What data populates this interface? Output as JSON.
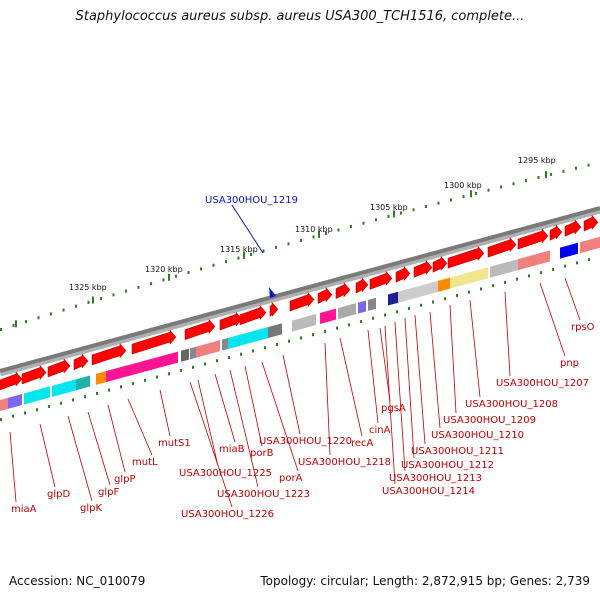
{
  "header": {
    "title": "Staphylococcus aureus subsp. aureus USA300_TCH1516, complete..."
  },
  "footer": {
    "accession": "Accession: NC_010079",
    "summary": "Topology: circular; Length: 2,872,915 bp; Genes: 2,739"
  },
  "colors": {
    "gene_red": "#ff0000",
    "label_red": "#c00000",
    "highlight_blue": "#0a14c8",
    "backbone_gray": "#808080",
    "tick_green": "#2e7d1e"
  },
  "ruler": {
    "ticks": [
      "1295 kbp",
      "1300 kbp",
      "1305 kbp",
      "1310 kbp",
      "1315 kbp",
      "1320 kbp",
      "1325 kbp"
    ]
  },
  "highlight": {
    "label": "USA300HOU_1219"
  },
  "genes": [
    "rpsO",
    "pnp",
    "USA300HOU_1207",
    "USA300HOU_1208",
    "USA300HOU_1209",
    "USA300HOU_1210",
    "USA300HOU_1211",
    "USA300HOU_1212",
    "USA300HOU_1213",
    "USA300HOU_1214",
    "pgsA",
    "cinA",
    "recA",
    "USA300HOU_1218",
    "USA300HOU_1220",
    "porA",
    "porB",
    "miaB",
    "USA300HOU_1223",
    "USA300HOU_1225",
    "USA300HOU_1226",
    "mutS1",
    "mutL",
    "glpP",
    "glpF",
    "glpK",
    "glpD",
    "miaA"
  ]
}
